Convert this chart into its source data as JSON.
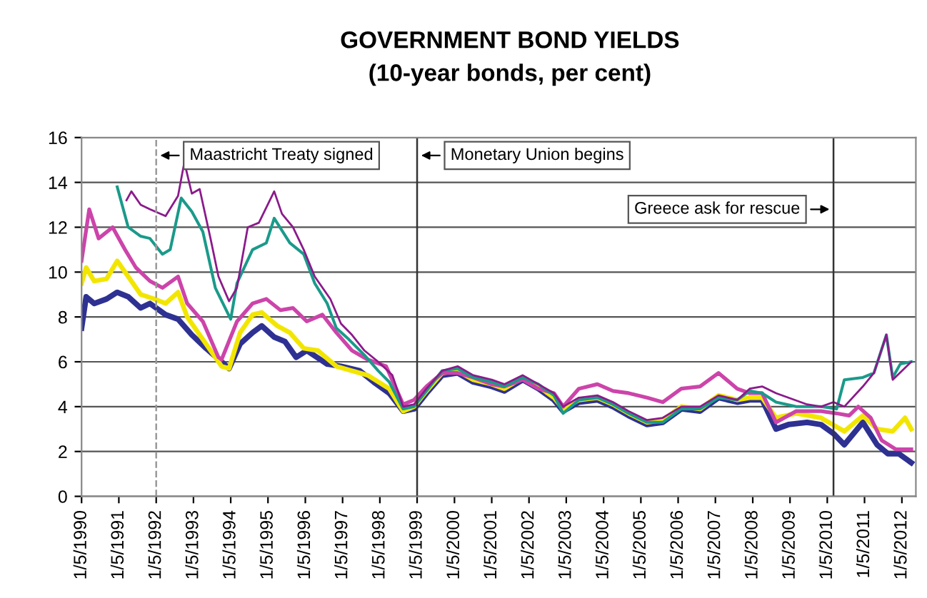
{
  "chart_data": {
    "type": "line",
    "title": "GOVERNMENT BOND YIELDS",
    "subtitle": "(10-year bonds, per cent)",
    "xlim": [
      "1990-05-01",
      "2012-09-15"
    ],
    "ylim": [
      0,
      16
    ],
    "yticks": [
      0,
      2,
      4,
      6,
      8,
      10,
      12,
      14,
      16
    ],
    "xticks": [
      {
        "value": "1990-05-01",
        "label": "1/5/1990"
      },
      {
        "value": "1991-05-01",
        "label": "1/5/1991"
      },
      {
        "value": "1992-05-01",
        "label": "1/5/1992"
      },
      {
        "value": "1993-05-01",
        "label": "1/5/1993"
      },
      {
        "value": "1994-05-01",
        "label": "1/5/1994"
      },
      {
        "value": "1995-05-01",
        "label": "1/5/1995"
      },
      {
        "value": "1996-05-01",
        "label": "1/5/1996"
      },
      {
        "value": "1997-05-01",
        "label": "1/5/1997"
      },
      {
        "value": "1998-05-01",
        "label": "1/5/1998"
      },
      {
        "value": "1999-05-01",
        "label": "1/5/1999"
      },
      {
        "value": "2000-05-01",
        "label": "1/5/2000"
      },
      {
        "value": "2001-05-01",
        "label": "1/5/2001"
      },
      {
        "value": "2002-05-01",
        "label": "1/5/2002"
      },
      {
        "value": "2003-05-01",
        "label": "1/5/2003"
      },
      {
        "value": "2004-05-01",
        "label": "1/5/2004"
      },
      {
        "value": "2005-05-01",
        "label": "1/5/2005"
      },
      {
        "value": "2006-05-01",
        "label": "1/5/2006"
      },
      {
        "value": "2007-05-01",
        "label": "1/5/2007"
      },
      {
        "value": "2008-05-01",
        "label": "1/5/2008"
      },
      {
        "value": "2009-05-01",
        "label": "1/5/2009"
      },
      {
        "value": "2010-05-01",
        "label": "1/5/2010"
      },
      {
        "value": "2011-05-01",
        "label": "1/5/2011"
      },
      {
        "value": "2012-05-01",
        "label": "1/5/2012"
      }
    ],
    "grid": "y",
    "legend": false,
    "marker": "none",
    "line_style": "solid",
    "ref_lines": [
      {
        "axis": "x",
        "value": "1992-05-01",
        "label": "Maastricht Treaty signed",
        "color": "#999999",
        "line_style": "dashed"
      },
      {
        "axis": "x",
        "value": "1999-05-01",
        "label": "Monetary Union begins",
        "color": "#333333",
        "line_style": "solid"
      },
      {
        "axis": "x",
        "value": "2010-07-01",
        "label": "Greece ask for rescue",
        "color": "#333333",
        "line_style": "solid"
      }
    ],
    "series": [
      {
        "color": "#2e3192",
        "x": [
          "1990-05-01",
          "1990-06-15",
          "1990-09-01",
          "1991-01-01",
          "1991-04-15",
          "1991-08-01",
          "1991-12-01",
          "1992-03-01",
          "1992-08-01",
          "1992-12-01",
          "1993-04-15",
          "1993-09-01",
          "1994-02-01",
          "1994-04-15",
          "1994-08-01",
          "1994-12-01",
          "1995-03-01",
          "1995-07-01",
          "1995-10-15",
          "1996-02-01",
          "1996-05-15",
          "1996-12-01",
          "1997-04-15",
          "1997-10-15",
          "1998-03-01",
          "1998-08-01",
          "1998-12-15",
          "1999-04-01",
          "1999-08-01",
          "2000-01-01",
          "2000-06-01",
          "2000-11-01",
          "2001-05-01",
          "2001-09-01",
          "2002-03-01",
          "2002-08-01",
          "2003-01-01",
          "2003-04-01",
          "2003-09-01",
          "2004-03-01",
          "2004-08-01",
          "2005-01-01",
          "2005-07-01",
          "2005-12-01",
          "2006-06-01",
          "2006-12-01",
          "2007-06-01",
          "2007-12-01",
          "2008-04-01",
          "2008-08-01",
          "2008-12-15",
          "2009-04-15",
          "2009-10-15",
          "2010-03-01",
          "2010-07-01",
          "2010-10-15",
          "2011-04-15",
          "2011-09-01",
          "2011-12-15",
          "2012-04-01",
          "2012-08-01"
        ],
        "values": [
          7.5,
          8.9,
          8.6,
          8.8,
          9.1,
          8.9,
          8.4,
          8.6,
          8.1,
          7.9,
          7.2,
          6.6,
          6.0,
          5.7,
          6.8,
          7.3,
          7.6,
          7.1,
          6.9,
          6.2,
          6.5,
          5.9,
          5.8,
          5.6,
          5.1,
          4.6,
          3.8,
          3.9,
          4.6,
          5.4,
          5.5,
          5.1,
          4.9,
          4.7,
          5.2,
          4.8,
          4.3,
          3.8,
          4.2,
          4.3,
          4.0,
          3.6,
          3.2,
          3.3,
          3.9,
          3.8,
          4.4,
          4.2,
          4.3,
          4.3,
          3.0,
          3.2,
          3.3,
          3.2,
          2.8,
          2.3,
          3.3,
          2.3,
          1.9,
          1.9,
          1.5
        ]
      },
      {
        "color": "#f2e600",
        "x": [
          "1990-05-01",
          "1990-06-15",
          "1990-09-01",
          "1991-01-01",
          "1991-04-15",
          "1991-08-01",
          "1991-12-01",
          "1992-04-15",
          "1992-08-01",
          "1992-12-01",
          "1993-03-01",
          "1993-08-01",
          "1994-02-01",
          "1994-04-15",
          "1994-08-01",
          "1994-12-01",
          "1995-03-01",
          "1995-08-01",
          "1995-12-01",
          "1996-04-15",
          "1996-09-01",
          "1997-03-01",
          "1997-08-01",
          "1998-01-01",
          "1998-08-01",
          "1998-12-15",
          "1999-04-01",
          "1999-08-01",
          "2000-01-01",
          "2000-06-01",
          "2000-11-01",
          "2001-05-01",
          "2001-09-01",
          "2002-03-01",
          "2002-08-01",
          "2003-01-01",
          "2003-04-01",
          "2003-09-01",
          "2004-03-01",
          "2004-08-01",
          "2005-01-01",
          "2005-07-01",
          "2005-12-01",
          "2006-06-01",
          "2006-12-01",
          "2007-06-01",
          "2007-12-01",
          "2008-04-01",
          "2008-08-01",
          "2008-12-15",
          "2009-07-01",
          "2010-03-01",
          "2010-10-15",
          "2011-04-15",
          "2011-09-01",
          "2012-02-01",
          "2012-06-01",
          "2012-08-01"
        ],
        "values": [
          9.5,
          10.2,
          9.6,
          9.7,
          10.5,
          9.8,
          9.0,
          8.8,
          8.6,
          9.1,
          8.0,
          7.0,
          5.8,
          5.7,
          7.3,
          8.1,
          8.2,
          7.6,
          7.3,
          6.6,
          6.5,
          5.8,
          5.6,
          5.4,
          4.8,
          3.8,
          4.0,
          4.7,
          5.5,
          5.6,
          5.2,
          5.0,
          4.8,
          5.3,
          4.9,
          4.4,
          3.9,
          4.3,
          4.4,
          4.1,
          3.7,
          3.3,
          3.4,
          4.0,
          3.9,
          4.5,
          4.3,
          4.4,
          4.4,
          3.5,
          3.7,
          3.5,
          2.9,
          3.6,
          3.0,
          2.9,
          3.5,
          3.0
        ]
      },
      {
        "color": "#cc44aa",
        "x": [
          "1990-05-01",
          "1990-07-15",
          "1990-10-15",
          "1991-03-01",
          "1991-07-01",
          "1991-10-15",
          "1992-03-01",
          "1992-07-01",
          "1992-12-01",
          "1993-03-01",
          "1993-08-01",
          "1994-01-01",
          "1994-02-01",
          "1994-07-01",
          "1994-12-01",
          "1995-04-15",
          "1995-09-01",
          "1996-01-01",
          "1996-05-15",
          "1996-10-15",
          "1997-03-01",
          "1997-08-01",
          "1998-01-01",
          "1998-07-01",
          "1998-12-15",
          "1999-04-01",
          "1999-08-01",
          "2000-01-01",
          "2000-06-01",
          "2000-11-01",
          "2001-05-01",
          "2001-09-01",
          "2002-03-01",
          "2002-08-01",
          "2003-01-01",
          "2003-04-01",
          "2003-09-01",
          "2004-03-01",
          "2004-08-01",
          "2005-01-01",
          "2005-07-01",
          "2005-12-01",
          "2006-06-01",
          "2006-12-01",
          "2007-06-01",
          "2007-12-01",
          "2008-04-01",
          "2008-08-01",
          "2008-12-15",
          "2009-07-01",
          "2010-03-01",
          "2010-08-01",
          "2010-12-01",
          "2011-03-01",
          "2011-07-01",
          "2011-10-15",
          "2012-03-01",
          "2012-08-01"
        ],
        "values": [
          10.5,
          12.8,
          11.5,
          12.0,
          11.0,
          10.2,
          9.6,
          9.3,
          9.8,
          8.6,
          7.8,
          6.2,
          6.1,
          7.8,
          8.6,
          8.8,
          8.3,
          8.4,
          7.8,
          8.1,
          7.3,
          6.5,
          6.1,
          5.8,
          4.1,
          4.3,
          4.9,
          5.5,
          5.5,
          5.3,
          5.0,
          4.9,
          5.2,
          4.8,
          4.6,
          4.0,
          4.8,
          5.0,
          4.7,
          4.6,
          4.4,
          4.2,
          4.8,
          4.9,
          5.5,
          4.8,
          4.6,
          4.6,
          3.3,
          3.8,
          3.8,
          3.7,
          3.6,
          4.0,
          3.5,
          2.5,
          2.1,
          2.1
        ]
      },
      {
        "color": "#1a9a8a",
        "x": [
          "1991-04-15",
          "1991-08-01",
          "1991-12-01",
          "1992-03-01",
          "1992-07-01",
          "1992-09-15",
          "1993-01-01",
          "1993-04-15",
          "1993-08-01",
          "1993-12-01",
          "1994-05-01",
          "1994-07-01",
          "1994-12-01",
          "1995-04-15",
          "1995-07-01",
          "1995-12-01",
          "1996-04-15",
          "1996-08-01",
          "1996-12-01",
          "1997-03-01",
          "1997-07-01",
          "1997-12-01",
          "1998-04-15",
          "1998-08-01",
          "1998-12-15",
          "1999-04-01",
          "1999-08-01",
          "2000-01-01",
          "2000-06-01",
          "2000-11-01",
          "2001-05-01",
          "2001-09-01",
          "2002-03-01",
          "2002-08-01",
          "2003-01-01",
          "2003-04-01",
          "2003-09-01",
          "2004-03-01",
          "2004-08-01",
          "2005-01-01",
          "2005-07-01",
          "2005-12-01",
          "2006-06-01",
          "2006-12-01",
          "2007-06-01",
          "2007-12-01",
          "2008-04-01",
          "2008-08-01",
          "2008-12-15",
          "2009-07-01",
          "2010-03-01",
          "2010-08-01",
          "2010-10-15",
          "2011-04-15",
          "2011-08-01",
          "2011-12-01",
          "2012-02-01",
          "2012-04-15",
          "2012-08-01"
        ],
        "values": [
          13.8,
          12.0,
          11.6,
          11.5,
          10.8,
          11.0,
          13.3,
          12.7,
          11.8,
          9.3,
          7.9,
          9.5,
          11.0,
          11.3,
          12.4,
          11.3,
          10.8,
          9.5,
          8.6,
          7.5,
          7.0,
          6.3,
          5.6,
          5.1,
          3.9,
          4.0,
          4.7,
          5.6,
          5.7,
          5.3,
          5.1,
          4.9,
          5.3,
          5.0,
          4.5,
          3.7,
          4.3,
          4.4,
          4.1,
          3.7,
          3.3,
          3.3,
          3.9,
          3.9,
          4.4,
          4.3,
          4.7,
          4.6,
          4.2,
          4.0,
          4.0,
          3.9,
          5.2,
          5.3,
          5.5,
          7.2,
          5.3,
          5.9,
          6.0
        ]
      },
      {
        "color": "#8b1a8b",
        "x": [
          "1991-07-15",
          "1991-09-01",
          "1991-12-01",
          "1992-03-01",
          "1992-08-01",
          "1992-12-01",
          "1993-02-01",
          "1993-04-15",
          "1993-07-01",
          "1993-10-15",
          "1994-01-01",
          "1994-04-15",
          "1994-07-01",
          "1994-10-15",
          "1995-02-01",
          "1995-07-01",
          "1995-09-15",
          "1996-01-01",
          "1996-04-15",
          "1996-08-01",
          "1997-01-01",
          "1997-04-15",
          "1997-08-01",
          "1997-12-01",
          "1998-04-15",
          "1998-09-01",
          "1998-12-15",
          "1999-04-01",
          "1999-08-01",
          "2000-01-01",
          "2000-06-01",
          "2000-11-01",
          "2001-05-01",
          "2001-09-01",
          "2002-03-01",
          "2002-08-01",
          "2003-01-01",
          "2003-04-01",
          "2003-09-01",
          "2004-03-01",
          "2004-08-01",
          "2005-01-01",
          "2005-07-01",
          "2005-12-01",
          "2006-06-01",
          "2006-12-01",
          "2007-06-01",
          "2007-12-01",
          "2008-04-01",
          "2008-08-01",
          "2008-12-15",
          "2009-04-15",
          "2009-10-15",
          "2010-03-01",
          "2010-07-01",
          "2010-10-15",
          "2011-04-15",
          "2011-08-01",
          "2011-12-01",
          "2012-02-01",
          "2012-08-01"
        ],
        "values": [
          13.2,
          13.6,
          13.0,
          12.8,
          12.5,
          13.4,
          14.9,
          13.5,
          13.7,
          11.5,
          9.8,
          8.7,
          9.3,
          12.0,
          12.2,
          13.6,
          12.6,
          12.0,
          11.0,
          9.8,
          8.8,
          7.7,
          7.2,
          6.5,
          6.0,
          5.4,
          4.0,
          4.1,
          4.8,
          5.6,
          5.8,
          5.4,
          5.2,
          5.0,
          5.4,
          5.0,
          4.6,
          4.0,
          4.4,
          4.5,
          4.2,
          3.8,
          3.4,
          3.5,
          4.0,
          4.0,
          4.5,
          4.3,
          4.8,
          4.9,
          4.6,
          4.4,
          4.1,
          4.0,
          4.2,
          4.0,
          4.9,
          5.5,
          7.2,
          5.2,
          6.0
        ]
      }
    ]
  }
}
